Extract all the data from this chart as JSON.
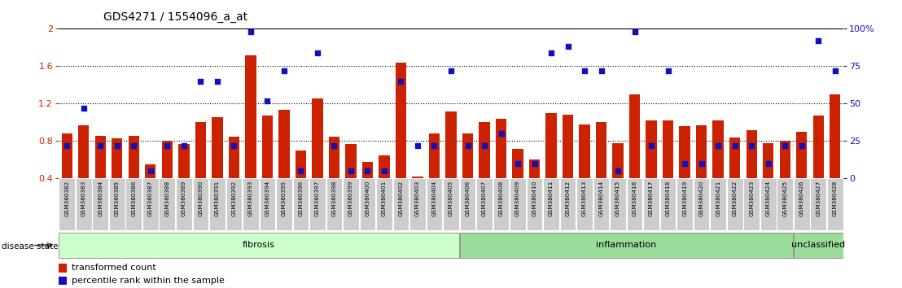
{
  "title": "GDS4271 / 1554096_a_at",
  "samples": [
    "GSM380382",
    "GSM380383",
    "GSM380384",
    "GSM380385",
    "GSM380386",
    "GSM380387",
    "GSM380388",
    "GSM380389",
    "GSM380390",
    "GSM380391",
    "GSM380392",
    "GSM380393",
    "GSM380394",
    "GSM380395",
    "GSM380396",
    "GSM380397",
    "GSM380398",
    "GSM380399",
    "GSM380400",
    "GSM380401",
    "GSM380402",
    "GSM380403",
    "GSM380404",
    "GSM380405",
    "GSM380406",
    "GSM380407",
    "GSM380408",
    "GSM380409",
    "GSM380410",
    "GSM380411",
    "GSM380412",
    "GSM380413",
    "GSM380414",
    "GSM380415",
    "GSM380416",
    "GSM380417",
    "GSM380418",
    "GSM380419",
    "GSM380420",
    "GSM380421",
    "GSM380422",
    "GSM380423",
    "GSM380424",
    "GSM380425",
    "GSM380426",
    "GSM380427",
    "GSM380428"
  ],
  "bar_values": [
    0.88,
    0.97,
    0.86,
    0.83,
    0.86,
    0.55,
    0.8,
    0.77,
    1.0,
    1.06,
    0.85,
    1.72,
    1.07,
    1.13,
    0.7,
    1.26,
    0.85,
    0.77,
    0.58,
    0.65,
    1.64,
    0.42,
    0.88,
    1.12,
    0.88,
    1.0,
    1.04,
    0.72,
    0.6,
    1.1,
    1.08,
    0.98,
    1.0,
    0.78,
    1.3,
    1.02,
    1.02,
    0.96,
    0.97,
    1.02,
    0.84,
    0.92,
    0.78,
    0.8,
    0.9,
    1.07,
    1.3
  ],
  "dot_pct": [
    22,
    47,
    22,
    22,
    22,
    5,
    22,
    22,
    65,
    65,
    22,
    98,
    52,
    72,
    5,
    84,
    22,
    5,
    5,
    5,
    65,
    22,
    22,
    72,
    22,
    22,
    30,
    10,
    10,
    84,
    88,
    72,
    72,
    5,
    98,
    22,
    72,
    10,
    10,
    22,
    22,
    22,
    10,
    22,
    22,
    92,
    72
  ],
  "bar_color": "#cc2200",
  "dot_color": "#1111bb",
  "ymin": 0.4,
  "ymax": 2.0,
  "yticks_left": [
    0.4,
    0.8,
    1.2,
    1.6,
    2.0
  ],
  "ytick_labels_left": [
    "0.4",
    "0.8",
    "1.2",
    "1.6",
    "2"
  ],
  "ytick_labels_right": [
    "0",
    "25",
    "50",
    "75",
    "100%"
  ],
  "hlines": [
    0.8,
    1.2,
    1.6
  ],
  "group_boundaries": [
    {
      "label": "fibrosis",
      "start": 0,
      "end": 23,
      "color": "#ccffcc"
    },
    {
      "label": "inflammation",
      "start": 24,
      "end": 43,
      "color": "#99dd99"
    },
    {
      "label": "unclassified",
      "start": 44,
      "end": 46,
      "color": "#99dd99"
    }
  ],
  "legend_bar_label": "transformed count",
  "legend_dot_label": "percentile rank within the sample",
  "disease_state_label": "disease state",
  "bar_color_left": "#cc2200",
  "bar_width": 0.65
}
